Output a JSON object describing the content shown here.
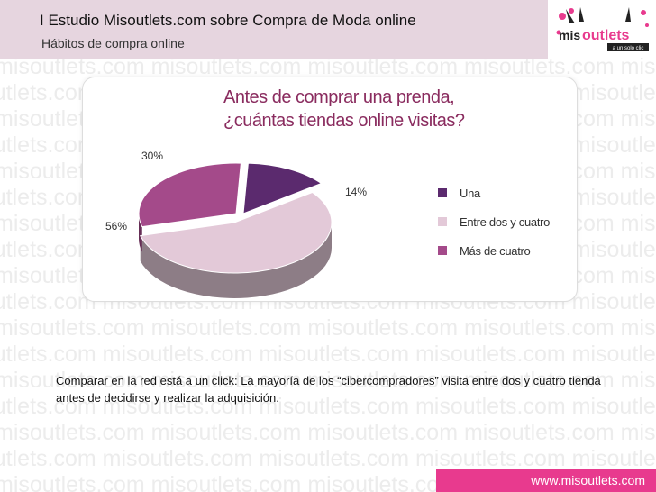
{
  "watermark": {
    "text": "misoutlets.com misoutlets.com misoutlets.com misoutlets.com misoutlets.com misoutlets.com"
  },
  "header": {
    "title": "I Estudio Misoutlets.com sobre Compra de Moda online",
    "subtitle": "Hábitos de compra online"
  },
  "logo": {
    "icon": "misoutlets-logo",
    "text": "misoutlets",
    "tagline": "a un solo clic"
  },
  "chart_data": {
    "type": "pie",
    "title": "Antes de comprar una prenda, ¿cuántas tiendas online visitas?",
    "title_lines": [
      "Antes de comprar una prenda,",
      "¿cuántas tiendas online visitas?"
    ],
    "categories": [
      "Una",
      "Entre dos y cuatro",
      "Más de cuatro"
    ],
    "values": [
      14,
      56,
      30
    ],
    "labels": [
      "14%",
      "56%",
      "30%"
    ],
    "colors": [
      "#5b2a6e",
      "#e3c9d8",
      "#a44a8a"
    ],
    "legend": "right"
  },
  "caption": "Comparar en la red está a un click: La mayoría de los “cibercompradores” visita entre dos y cuatro tienda antes de decidirse y realizar la adquisición.",
  "footer": {
    "link": "www.misoutlets.com"
  }
}
